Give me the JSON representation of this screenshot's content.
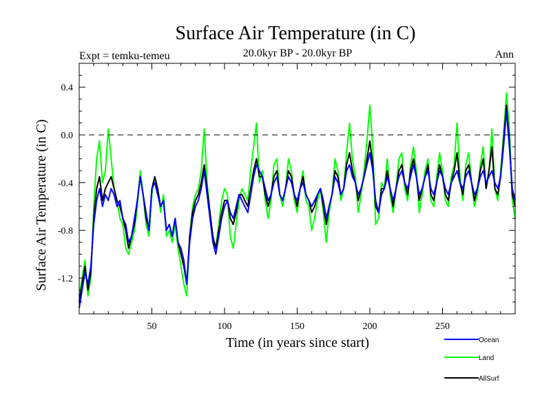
{
  "chart_data": {
    "type": "line",
    "title": "Surface Air Temperature (in C)",
    "subtitle": "20.0kyr BP - 20.0kyr BP",
    "left_label": "Expt = temku-temeu",
    "right_label": "Ann",
    "xlabel": "Time (in years since start)",
    "ylabel": "Surface Air Temperature (in C)",
    "xlim": [
      0,
      300
    ],
    "ylim": [
      -1.5,
      0.6
    ],
    "xticks": [
      50,
      100,
      150,
      200,
      250
    ],
    "yticks": [
      0.4,
      0.0,
      -0.4,
      -0.8,
      -1.2
    ],
    "xtick_labels": [
      "50",
      "100",
      "150",
      "200",
      "250"
    ],
    "ytick_labels": [
      "0.4",
      "0.0",
      "-0.4",
      "-0.8",
      "-1.2"
    ],
    "reference_line": {
      "y": 0.0,
      "style": "dashed"
    },
    "x": [
      0,
      2,
      4,
      6,
      8,
      10,
      12,
      14,
      16,
      18,
      20,
      22,
      24,
      26,
      28,
      30,
      32,
      34,
      36,
      38,
      40,
      42,
      44,
      46,
      48,
      50,
      52,
      54,
      56,
      58,
      60,
      62,
      64,
      66,
      68,
      70,
      72,
      74,
      76,
      78,
      80,
      82,
      84,
      86,
      88,
      90,
      92,
      94,
      96,
      98,
      100,
      102,
      104,
      106,
      108,
      110,
      112,
      114,
      116,
      118,
      120,
      122,
      124,
      126,
      128,
      130,
      132,
      134,
      136,
      138,
      140,
      142,
      144,
      146,
      148,
      150,
      152,
      154,
      156,
      158,
      160,
      162,
      164,
      166,
      168,
      170,
      172,
      174,
      176,
      178,
      180,
      182,
      184,
      186,
      188,
      190,
      192,
      194,
      196,
      198,
      200,
      202,
      204,
      206,
      208,
      210,
      212,
      214,
      216,
      218,
      220,
      222,
      224,
      226,
      228,
      230,
      232,
      234,
      236,
      238,
      240,
      242,
      244,
      246,
      248,
      250,
      252,
      254,
      256,
      258,
      260,
      262,
      264,
      266,
      268,
      270,
      272,
      274,
      276,
      278,
      280,
      282,
      284,
      286,
      288,
      290,
      292,
      294,
      296,
      298,
      300
    ],
    "series": [
      {
        "name": "Ocean",
        "color": "#0000ff",
        "values": [
          -1.45,
          -1.3,
          -1.15,
          -1.25,
          -1.1,
          -0.75,
          -0.55,
          -0.45,
          -0.6,
          -0.5,
          -0.55,
          -0.45,
          -0.5,
          -0.6,
          -0.55,
          -0.7,
          -0.75,
          -0.9,
          -0.85,
          -0.7,
          -0.55,
          -0.35,
          -0.5,
          -0.65,
          -0.8,
          -0.45,
          -0.4,
          -0.5,
          -0.6,
          -0.55,
          -0.8,
          -0.75,
          -0.85,
          -0.7,
          -0.9,
          -0.95,
          -1.05,
          -1.25,
          -0.9,
          -0.7,
          -0.6,
          -0.55,
          -0.45,
          -0.3,
          -0.5,
          -0.7,
          -0.9,
          -1.0,
          -0.85,
          -0.7,
          -0.6,
          -0.55,
          -0.65,
          -0.7,
          -0.6,
          -0.5,
          -0.55,
          -0.6,
          -0.65,
          -0.5,
          -0.35,
          -0.25,
          -0.3,
          -0.35,
          -0.45,
          -0.55,
          -0.5,
          -0.4,
          -0.35,
          -0.5,
          -0.55,
          -0.45,
          -0.35,
          -0.4,
          -0.5,
          -0.55,
          -0.45,
          -0.4,
          -0.5,
          -0.55,
          -0.6,
          -0.55,
          -0.5,
          -0.45,
          -0.55,
          -0.7,
          -0.6,
          -0.5,
          -0.35,
          -0.4,
          -0.5,
          -0.45,
          -0.3,
          -0.25,
          -0.35,
          -0.4,
          -0.5,
          -0.45,
          -0.35,
          -0.25,
          -0.15,
          -0.3,
          -0.55,
          -0.65,
          -0.5,
          -0.45,
          -0.35,
          -0.45,
          -0.55,
          -0.45,
          -0.35,
          -0.3,
          -0.4,
          -0.45,
          -0.35,
          -0.25,
          -0.35,
          -0.5,
          -0.45,
          -0.35,
          -0.3,
          -0.45,
          -0.5,
          -0.4,
          -0.3,
          -0.35,
          -0.45,
          -0.5,
          -0.4,
          -0.35,
          -0.3,
          -0.4,
          -0.45,
          -0.35,
          -0.3,
          -0.4,
          -0.5,
          -0.45,
          -0.35,
          -0.3,
          -0.4,
          -0.35,
          -0.3,
          -0.4,
          -0.45,
          -0.35,
          -0.1,
          0.2,
          -0.1,
          -0.45,
          -0.55
        ]
      },
      {
        "name": "Land",
        "color": "#00ff00",
        "values": [
          -1.35,
          -1.2,
          -1.05,
          -1.35,
          -1.2,
          -0.6,
          -0.2,
          -0.05,
          -0.4,
          -0.3,
          0.05,
          -0.2,
          -0.45,
          -0.55,
          -0.7,
          -0.75,
          -0.95,
          -1.0,
          -0.9,
          -0.8,
          -0.6,
          -0.3,
          -0.5,
          -0.75,
          -0.85,
          -0.5,
          -0.35,
          -0.45,
          -0.65,
          -0.5,
          -0.85,
          -0.8,
          -0.9,
          -0.75,
          -0.95,
          -1.1,
          -1.25,
          -1.35,
          -0.85,
          -0.6,
          -0.5,
          -0.45,
          -0.3,
          0.05,
          -0.4,
          -0.65,
          -0.9,
          -0.95,
          -0.75,
          -0.55,
          -0.45,
          -0.5,
          -0.85,
          -0.95,
          -0.75,
          -0.55,
          -0.45,
          -0.5,
          -0.55,
          -0.3,
          -0.1,
          0.1,
          -0.4,
          -0.3,
          -0.55,
          -0.7,
          -0.55,
          -0.25,
          -0.2,
          -0.5,
          -0.6,
          -0.45,
          -0.2,
          -0.3,
          -0.55,
          -0.65,
          -0.45,
          -0.3,
          -0.55,
          -0.6,
          -0.8,
          -0.7,
          -0.55,
          -0.45,
          -0.65,
          -0.9,
          -0.65,
          -0.5,
          -0.2,
          -0.3,
          -0.55,
          -0.45,
          -0.15,
          0.1,
          -0.2,
          -0.35,
          -0.65,
          -0.5,
          -0.3,
          -0.05,
          0.25,
          -0.1,
          -0.75,
          -0.7,
          -0.4,
          -0.45,
          -0.2,
          -0.5,
          -0.65,
          -0.45,
          -0.2,
          -0.15,
          -0.45,
          -0.55,
          -0.25,
          -0.1,
          -0.3,
          -0.65,
          -0.5,
          -0.3,
          -0.2,
          -0.55,
          -0.6,
          -0.35,
          -0.15,
          -0.3,
          -0.55,
          -0.6,
          -0.35,
          -0.25,
          0.1,
          -0.35,
          -0.55,
          -0.25,
          -0.15,
          -0.4,
          -0.6,
          -0.5,
          -0.25,
          -0.1,
          -0.45,
          -0.3,
          0.05,
          -0.45,
          -0.55,
          -0.3,
          0.0,
          0.35,
          0.05,
          -0.55,
          -0.7
        ]
      },
      {
        "name": "AllSurf",
        "color": "#000000",
        "values": [
          -1.4,
          -1.25,
          -1.1,
          -1.3,
          -1.15,
          -0.7,
          -0.45,
          -0.35,
          -0.55,
          -0.45,
          -0.4,
          -0.35,
          -0.45,
          -0.55,
          -0.6,
          -0.7,
          -0.8,
          -0.95,
          -0.85,
          -0.75,
          -0.55,
          -0.35,
          -0.5,
          -0.7,
          -0.8,
          -0.45,
          -0.35,
          -0.45,
          -0.6,
          -0.55,
          -0.8,
          -0.75,
          -0.85,
          -0.7,
          -0.9,
          -1.0,
          -1.1,
          -1.25,
          -0.85,
          -0.65,
          -0.55,
          -0.5,
          -0.4,
          -0.25,
          -0.45,
          -0.65,
          -0.85,
          -0.95,
          -0.8,
          -0.65,
          -0.55,
          -0.55,
          -0.7,
          -0.75,
          -0.65,
          -0.5,
          -0.5,
          -0.55,
          -0.6,
          -0.45,
          -0.3,
          -0.2,
          -0.35,
          -0.35,
          -0.5,
          -0.6,
          -0.5,
          -0.35,
          -0.3,
          -0.5,
          -0.55,
          -0.45,
          -0.3,
          -0.35,
          -0.5,
          -0.6,
          -0.45,
          -0.35,
          -0.5,
          -0.55,
          -0.65,
          -0.6,
          -0.5,
          -0.45,
          -0.6,
          -0.75,
          -0.6,
          -0.5,
          -0.3,
          -0.35,
          -0.5,
          -0.45,
          -0.25,
          -0.15,
          -0.3,
          -0.4,
          -0.55,
          -0.45,
          -0.35,
          -0.2,
          -0.05,
          -0.25,
          -0.6,
          -0.65,
          -0.45,
          -0.45,
          -0.3,
          -0.45,
          -0.6,
          -0.45,
          -0.3,
          -0.25,
          -0.4,
          -0.5,
          -0.3,
          -0.2,
          -0.35,
          -0.55,
          -0.45,
          -0.35,
          -0.25,
          -0.5,
          -0.55,
          -0.4,
          -0.25,
          -0.35,
          -0.5,
          -0.55,
          -0.4,
          -0.3,
          -0.15,
          -0.4,
          -0.5,
          -0.3,
          -0.25,
          -0.4,
          -0.55,
          -0.45,
          -0.3,
          -0.2,
          -0.45,
          -0.3,
          -0.1,
          -0.45,
          -0.5,
          -0.35,
          -0.05,
          0.25,
          -0.05,
          -0.5,
          -0.6
        ]
      }
    ],
    "legend": {
      "placement": "bottom-right",
      "entries": [
        "Ocean",
        "Land",
        "AllSurf"
      ]
    }
  }
}
